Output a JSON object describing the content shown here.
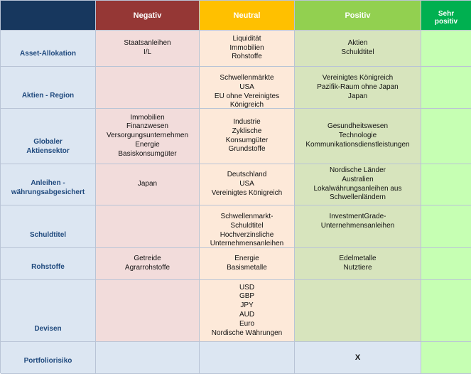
{
  "header": {
    "negativ": "Negativ",
    "neutral": "Neutral",
    "positiv": "Positiv",
    "sehr_positiv_1": "Sehr",
    "sehr_positiv_2": "positiv"
  },
  "rows": [
    {
      "label": [
        "Asset-Allokation"
      ],
      "negativ": [
        "Staatsanleihen",
        "I/L"
      ],
      "neutral": [
        "Liquidität",
        "Immobilien",
        "Rohstoffe"
      ],
      "positiv": [
        "Aktien",
        "Schuldtitel"
      ],
      "sehr_positiv": []
    },
    {
      "label": [
        "Aktien - Region"
      ],
      "negativ": [],
      "neutral": [
        "Schwellenmärkte",
        "USA",
        "EU ohne Vereinigtes",
        "Königreich"
      ],
      "positiv": [
        "Vereinigtes Königreich",
        "Pazifik-Raum ohne Japan",
        "Japan"
      ],
      "sehr_positiv": []
    },
    {
      "label": [
        "Globaler",
        "Aktiensektor"
      ],
      "negativ": [
        "Immobilien",
        "Finanzwesen",
        "Versorgungsunternehmen",
        "Energie",
        "Basiskonsumgüter"
      ],
      "neutral": [
        "Industrie",
        "Zyklische",
        "Konsumgüter",
        "Grundstoffe"
      ],
      "positiv": [
        "Gesundheitswesen",
        "Technologie",
        "Kommunikationsdienstleistungen"
      ],
      "sehr_positiv": []
    },
    {
      "label": [
        "Anleihen -",
        "währungsabgesichert"
      ],
      "negativ": [
        "Japan"
      ],
      "neutral": [
        "Deutschland",
        "USA",
        "Vereinigtes Königreich"
      ],
      "positiv": [
        "Nordische Länder",
        "Australien",
        "Lokalwährungsanleihen aus",
        "Schwellenländern"
      ],
      "sehr_positiv": []
    },
    {
      "label": [
        "Schuldtitel"
      ],
      "negativ": [],
      "neutral": [
        "Schwellenmarkt-",
        "Schuldtitel",
        "Hochverzinsliche",
        "Unternehmensanleihen"
      ],
      "positiv": [
        "InvestmentGrade-",
        "Unternehmensanleihen"
      ],
      "sehr_positiv": []
    },
    {
      "label": [
        "Rohstoffe"
      ],
      "negativ": [
        "Getreide",
        "Agrarrohstoffe"
      ],
      "neutral": [
        "Energie",
        "Basismetalle"
      ],
      "positiv": [
        "Edelmetalle",
        "Nutztiere"
      ],
      "sehr_positiv": []
    },
    {
      "label": [
        "Devisen"
      ],
      "negativ": [],
      "neutral": [
        "USD",
        "GBP",
        "JPY",
        "AUD",
        "Euro",
        "Nordische Währungen"
      ],
      "positiv": [],
      "sehr_positiv": []
    },
    {
      "label": [
        "Portfoliorisiko"
      ],
      "negativ": [],
      "neutral": [],
      "positiv": [
        "X"
      ],
      "sehr_positiv": []
    }
  ],
  "colors": {
    "corner": "#17375e",
    "negativ_header": "#953735",
    "neutral_header": "#ffc000",
    "positiv_header": "#92d050",
    "sehr_positiv_header": "#00b050",
    "row_label_bg": "#dce6f2",
    "row_label_text": "#1f497d",
    "negativ_cell": "#f2dcdb",
    "neutral_cell": "#fde9d9",
    "positiv_cell": "#d7e4bd",
    "sehr_positiv_cell": "#c6ffb3"
  }
}
